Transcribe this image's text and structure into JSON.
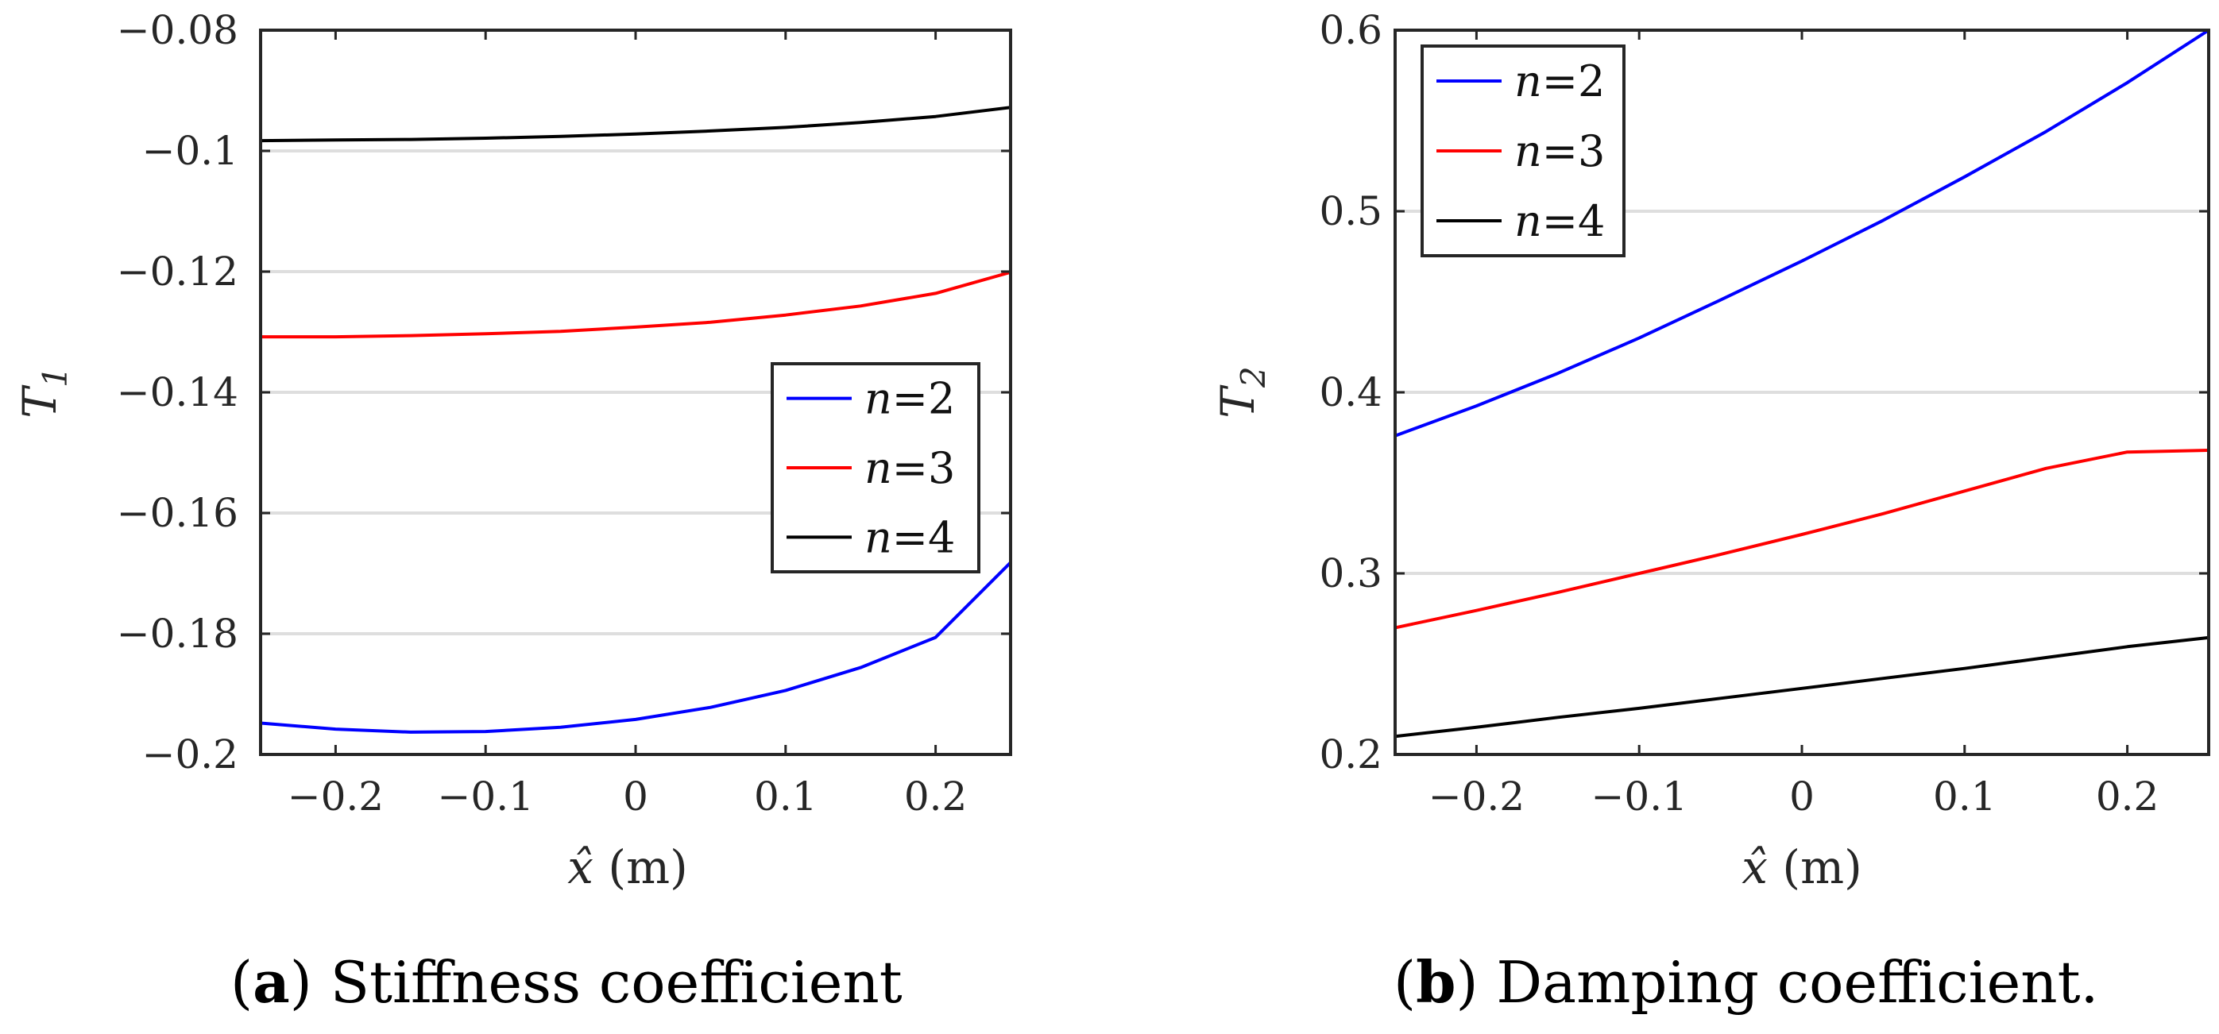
{
  "chart_data": [
    {
      "id": "a",
      "type": "line",
      "caption": {
        "open": "(",
        "letter": "a",
        "close": ")",
        "text": " Stiffness coefficient"
      },
      "xlabel": "x̂",
      "xunit": "(m)",
      "ylabel": "T",
      "ylabel_sub": "1",
      "xlim": [
        -0.25,
        0.25
      ],
      "ylim": [
        -0.2,
        -0.08
      ],
      "xticks": [
        -0.2,
        -0.1,
        0,
        0.1,
        0.2
      ],
      "xtick_labels": [
        "−0.2",
        "−0.1",
        "0",
        "0.1",
        "0.2"
      ],
      "yticks": [
        -0.2,
        -0.18,
        -0.16,
        -0.14,
        -0.12,
        -0.1,
        -0.08
      ],
      "ytick_labels": [
        "−0.2",
        "−0.18",
        "−0.16",
        "−0.14",
        "−0.12",
        "−0.1",
        "−0.08"
      ],
      "grid": "horizontal",
      "legend_position": "center-right",
      "x": [
        -0.25,
        -0.2,
        -0.15,
        -0.1,
        -0.05,
        0,
        0.05,
        0.1,
        0.15,
        0.2,
        0.25
      ],
      "series": [
        {
          "name": "n",
          "value": "=2",
          "color": "#0000ff",
          "values": [
            -0.1948,
            -0.1958,
            -0.1963,
            -0.1962,
            -0.1955,
            -0.1942,
            -0.1922,
            -0.1894,
            -0.1856,
            -0.1806,
            -0.1682
          ]
        },
        {
          "name": "n",
          "value": "=3",
          "color": "#ff0000",
          "values": [
            -0.1308,
            -0.1308,
            -0.1306,
            -0.1303,
            -0.1299,
            -0.1292,
            -0.1284,
            -0.1272,
            -0.1257,
            -0.1236,
            -0.1201
          ]
        },
        {
          "name": "n",
          "value": "=4",
          "color": "#000000",
          "values": [
            -0.0983,
            -0.0982,
            -0.0981,
            -0.0979,
            -0.0976,
            -0.0972,
            -0.0967,
            -0.0961,
            -0.0953,
            -0.0943,
            -0.0928
          ]
        }
      ]
    },
    {
      "id": "b",
      "type": "line",
      "caption": {
        "open": "(",
        "letter": "b",
        "close": ")",
        "text": " Damping coefficient."
      },
      "xlabel": "x̂",
      "xunit": "(m)",
      "ylabel": "T",
      "ylabel_sub": "2",
      "xlim": [
        -0.25,
        0.25
      ],
      "ylim": [
        0.2,
        0.6
      ],
      "xticks": [
        -0.2,
        -0.1,
        0,
        0.1,
        0.2
      ],
      "xtick_labels": [
        "−0.2",
        "−0.1",
        "0",
        "0.1",
        "0.2"
      ],
      "yticks": [
        0.2,
        0.3,
        0.4,
        0.5,
        0.6
      ],
      "ytick_labels": [
        "0.2",
        "0.3",
        "0.4",
        "0.5",
        "0.6"
      ],
      "grid": "horizontal",
      "legend_position": "top-left",
      "x": [
        -0.25,
        -0.2,
        -0.15,
        -0.1,
        -0.05,
        0,
        0.05,
        0.1,
        0.15,
        0.2,
        0.25
      ],
      "series": [
        {
          "name": "n",
          "value": "=2",
          "color": "#0000ff",
          "values": [
            0.376,
            0.3925,
            0.4105,
            0.43,
            0.451,
            0.4725,
            0.495,
            0.519,
            0.544,
            0.571,
            0.6
          ]
        },
        {
          "name": "n",
          "value": "=3",
          "color": "#ff0000",
          "values": [
            0.27,
            0.2795,
            0.2895,
            0.3,
            0.3105,
            0.3215,
            0.333,
            0.3455,
            0.358,
            0.367,
            0.368
          ]
        },
        {
          "name": "n",
          "value": "=4",
          "color": "#000000",
          "values": [
            0.21,
            0.215,
            0.2205,
            0.2255,
            0.231,
            0.2365,
            0.242,
            0.2475,
            0.2535,
            0.2595,
            0.2645
          ]
        }
      ]
    }
  ]
}
